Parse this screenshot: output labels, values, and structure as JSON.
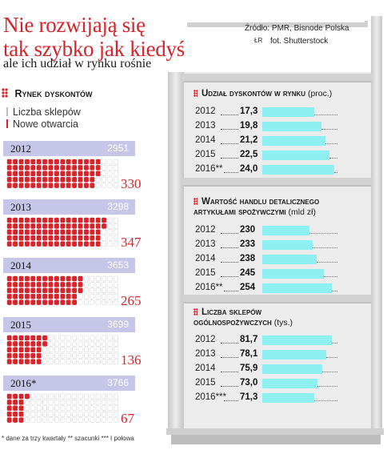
{
  "header": {
    "title_line1": "Nie rozwijają się",
    "title_line2": "tak szybko jak kiedyś",
    "subtitle": "ale ich udział w rynku rośnie"
  },
  "colors": {
    "red": "#d8232a",
    "lavender": "#c6c6e8",
    "cyan": "#8ff0f2",
    "shelf": "#d6d6d6"
  },
  "source": {
    "line1": "Źródło: PMR, Bisnode Polska",
    "initials": "ŁR",
    "photo": "fot. Shutterstock"
  },
  "discount": {
    "label": "Rynek dyskontów",
    "legend_stores": "Liczba sklepów",
    "legend_new": "Nowe otwarcia"
  },
  "footnote": "* dane za trzy kwartały   ** szacunki   *** I połowa",
  "chart_data": [
    {
      "type": "bar",
      "title": "Rynek dyskontów",
      "categories": [
        "2012",
        "2013",
        "2014",
        "2015",
        "2016*"
      ],
      "series": [
        {
          "name": "Liczba sklepów",
          "values": [
            2951,
            3298,
            3653,
            3699,
            3766
          ]
        },
        {
          "name": "Nowe otwarcia",
          "values": [
            330,
            347,
            265,
            136,
            67
          ]
        }
      ]
    },
    {
      "type": "bar",
      "title": "Udział dyskontów w rynku",
      "unit": "(proc.)",
      "categories": [
        "2012",
        "2013",
        "2014",
        "2015",
        "2016**"
      ],
      "values_text": [
        "17,3",
        "19,8",
        "21,2",
        "22,5",
        "24,0"
      ],
      "values": [
        17.3,
        19.8,
        21.2,
        22.5,
        24.0
      ]
    },
    {
      "type": "bar",
      "title_line1": "Wartość handlu detalicznego",
      "title_line2": "artykułami spożywczymi",
      "unit": "(mld zł)",
      "categories": [
        "2012",
        "2013",
        "2014",
        "2015",
        "2016**"
      ],
      "values_text": [
        "230",
        "233",
        "238",
        "245",
        "254"
      ],
      "values": [
        230,
        233,
        238,
        245,
        254
      ]
    },
    {
      "type": "bar",
      "title_line1": "Liczba sklepów",
      "title_line2": "ogólnospożywczych",
      "unit": "(tys.)",
      "categories": [
        "2012",
        "2013",
        "2014",
        "2015",
        "2016***"
      ],
      "values_text": [
        "81,7",
        "78,1",
        "75,9",
        "73,0",
        "71,3"
      ],
      "values": [
        81.7,
        78.1,
        75.9,
        73.0,
        71.3
      ]
    }
  ]
}
